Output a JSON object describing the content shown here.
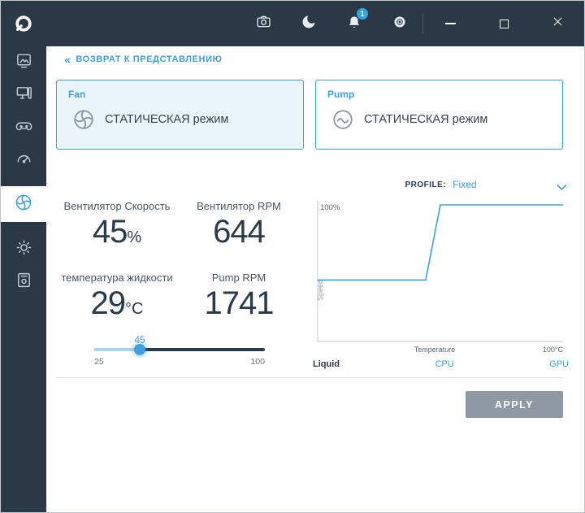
{
  "colors": {
    "topbar_bg": "#2b3947",
    "accent": "#3f9fd8",
    "dark_text": "#2b3a48",
    "card_selected_bg": "#eaf4fb",
    "apply_bg": "#8e99a3",
    "badge_bg": "#35a3e0"
  },
  "topbar": {
    "badge_count": "1",
    "icons": [
      "camera-icon",
      "moon-icon",
      "bell-icon",
      "gear-icon"
    ],
    "window_controls": [
      "minimize-icon",
      "maximize-icon",
      "close-icon"
    ]
  },
  "sidebar": {
    "items": [
      {
        "icon": "gallery-monitor-icon",
        "active": false
      },
      {
        "icon": "pc-specs-icon",
        "active": false
      },
      {
        "icon": "game-controller-icon",
        "active": false
      },
      {
        "icon": "performance-gauge-icon",
        "active": false
      },
      {
        "icon": "cooling-fan-icon",
        "active": true
      },
      {
        "icon": "lighting-sun-icon",
        "active": false
      },
      {
        "icon": "storage-drive-icon",
        "active": false
      }
    ]
  },
  "back_link": {
    "chevrons": "«",
    "label": "ВОЗВРАТ К ПРЕДСТАВЛЕНИЮ"
  },
  "cards": {
    "fan": {
      "title": "Fan",
      "mode": "СТАТИЧЕСКАЯ режим"
    },
    "pump": {
      "title": "Pump",
      "mode": "СТАТИЧЕСКАЯ режим"
    }
  },
  "stats": [
    {
      "label": "Вентилятор Скорость",
      "value": "45",
      "unit": "%"
    },
    {
      "label": "Вентилятор RPM",
      "value": "644",
      "unit": ""
    },
    {
      "label": "температура жидкости",
      "value": "29",
      "unit": "°C"
    },
    {
      "label": "Pump RPM",
      "value": "1741",
      "unit": ""
    }
  ],
  "slider": {
    "value": 45,
    "min": 25,
    "max": 100,
    "value_label": "45",
    "min_label": "25",
    "max_label": "100"
  },
  "profile": {
    "label": "PROFILE:",
    "value": "Fixed"
  },
  "chart_data": {
    "type": "line",
    "series": [
      {
        "name": "fan-curve",
        "x": [
          0,
          44,
          50,
          100
        ],
        "y": [
          45,
          45,
          100,
          100
        ]
      }
    ],
    "xlabel": "Temperature",
    "ylabel": "Speed",
    "x_axis_max_label": "100°C",
    "y_axis_max_label": "100%",
    "xlim": [
      0,
      100
    ],
    "ylim": [
      0,
      100
    ],
    "line_color": "#3f9fd8",
    "grid": false,
    "legend_position": "none"
  },
  "chart_tabs": [
    {
      "label": "Liquid",
      "active": true
    },
    {
      "label": "CPU",
      "active": false
    },
    {
      "label": "GPU",
      "active": false
    }
  ],
  "apply": {
    "label": "APPLY"
  }
}
